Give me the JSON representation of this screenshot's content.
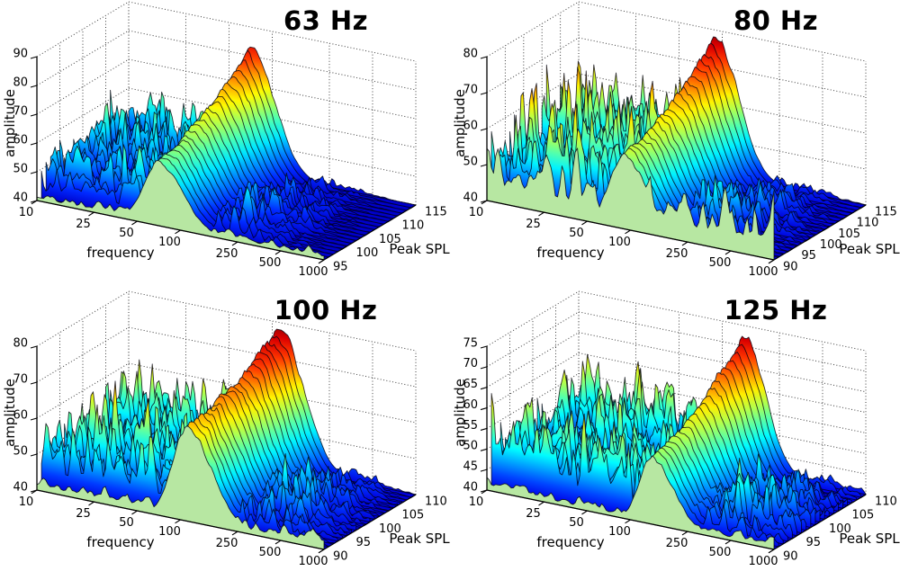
{
  "page": {
    "background": "#ffffff"
  },
  "chart_data": [
    {
      "type": "surface",
      "title": "63 Hz",
      "xlabel": "frequency",
      "ylabel": "Peak SPL",
      "zlabel": "amplitude",
      "x_scale": "log",
      "x_ticks": [
        10,
        25,
        50,
        100,
        250,
        500,
        1000
      ],
      "y_ticks": [
        95,
        100,
        105,
        110,
        115
      ],
      "z_ticks": [
        40,
        50,
        60,
        70,
        80,
        90
      ],
      "colormap": "jet",
      "tone_frequency_hz": 63,
      "peak_amplitude_est": 83,
      "noise_floor_amplitude": 40,
      "noise_band_max_amplitude_est": 63,
      "curtain_color": "#b7e7a2",
      "render": {
        "seed": 63,
        "noise_gain": 1.0,
        "curtain_base": 2.5,
        "front_ridge_frac": 0.53,
        "sigma_left": 0.105,
        "sigma_right": 0.165
      }
    },
    {
      "type": "surface",
      "title": "80 Hz",
      "xlabel": "frequency",
      "ylabel": "Peak SPL",
      "zlabel": "amplitude",
      "x_scale": "log",
      "x_ticks": [
        10,
        25,
        50,
        100,
        250,
        500,
        1000
      ],
      "y_ticks": [
        90,
        95,
        100,
        105,
        110,
        115
      ],
      "z_ticks": [
        40,
        50,
        60,
        70,
        80
      ],
      "colormap": "jet",
      "tone_frequency_hz": 80,
      "peak_amplitude_est": 78,
      "noise_floor_amplitude": 40,
      "noise_band_max_amplitude_est": 64,
      "curtain_color": "#b7e7a2",
      "render": {
        "seed": 80,
        "noise_gain": 1.2,
        "curtain_base": 11,
        "front_ridge_frac": 0.55,
        "sigma_left": 0.1,
        "sigma_right": 0.16
      }
    },
    {
      "type": "surface",
      "title": "100 Hz",
      "xlabel": "frequency",
      "ylabel": "Peak SPL",
      "zlabel": "amplitude",
      "x_scale": "log",
      "x_ticks": [
        10,
        25,
        50,
        100,
        250,
        500,
        1000
      ],
      "y_ticks": [
        90,
        95,
        100,
        105,
        110
      ],
      "z_ticks": [
        40,
        50,
        60,
        70,
        80
      ],
      "colormap": "jet",
      "tone_frequency_hz": 100,
      "peak_amplitude_est": 78,
      "noise_floor_amplitude": 40,
      "noise_band_max_amplitude_est": 63,
      "curtain_color": "#b7e7a2",
      "render": {
        "seed": 100,
        "noise_gain": 1.05,
        "curtain_base": 3,
        "front_ridge_frac": 0.7,
        "sigma_left": 0.105,
        "sigma_right": 0.17
      }
    },
    {
      "type": "surface",
      "title": "125 Hz",
      "xlabel": "frequency",
      "ylabel": "Peak SPL",
      "zlabel": "amplitude",
      "x_scale": "log",
      "x_ticks": [
        10,
        25,
        50,
        100,
        250,
        500,
        1000
      ],
      "y_ticks": [
        90,
        95,
        100,
        105,
        110
      ],
      "z_ticks": [
        40,
        45,
        50,
        55,
        60,
        65,
        70,
        75
      ],
      "colormap": "jet",
      "tone_frequency_hz": 125,
      "peak_amplitude_est": 73,
      "noise_floor_amplitude": 40,
      "noise_band_max_amplitude_est": 61,
      "curtain_color": "#b7e7a2",
      "render": {
        "seed": 125,
        "noise_gain": 0.95,
        "curtain_base": 2,
        "front_ridge_frac": 0.5,
        "sigma_left": 0.085,
        "sigma_right": 0.15
      }
    }
  ]
}
